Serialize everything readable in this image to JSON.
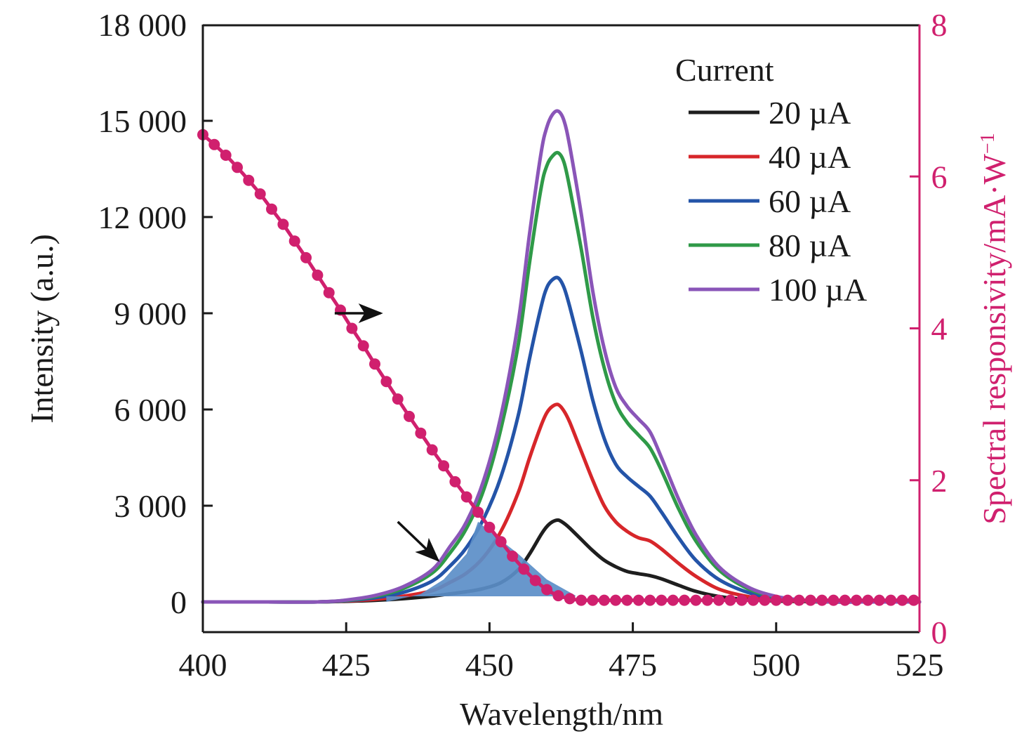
{
  "chart_data": {
    "type": "line",
    "title": "",
    "xlabel": "Wavelength/nm",
    "ylabel": "Intensity (a.u.)",
    "ylabel_right": "Spectral responsivity/mA·W",
    "ylabel_right_superscript": "−1",
    "xlim": [
      400,
      525
    ],
    "ylim": [
      0,
      18000
    ],
    "ylim_right": [
      0,
      8
    ],
    "grid": false,
    "xticks": [
      400,
      425,
      450,
      475,
      500,
      525
    ],
    "xtick_labels": [
      "400",
      "425",
      "450",
      "475",
      "500",
      "525"
    ],
    "yticks": [
      0,
      3000,
      6000,
      9000,
      12000,
      15000,
      18000
    ],
    "ytick_labels": [
      "0",
      "3 000",
      "6 000",
      "9 000",
      "12 000",
      "15 000",
      "18 000"
    ],
    "yticks_right": [
      0,
      2,
      4,
      6,
      8
    ],
    "ytick_labels_right": [
      "0",
      "2",
      "4",
      "6",
      "8"
    ],
    "legend": {
      "title": "Current",
      "placement": "top-right",
      "entries": [
        "20 µA",
        "40 µA",
        "60 µA",
        "80 µA",
        "100 µA"
      ]
    },
    "x": [
      400,
      410,
      420,
      425,
      430,
      435,
      440,
      443,
      446,
      449,
      452,
      455,
      457,
      459,
      460,
      461,
      462,
      463,
      464,
      466,
      468,
      470,
      472,
      474,
      476,
      478,
      480,
      483,
      486,
      490,
      495,
      500,
      505,
      510,
      515,
      520,
      525
    ],
    "series": [
      {
        "name": "20 µA",
        "axis": "left",
        "color": "#1e1e1e",
        "values": [
          0,
          0,
          0,
          20,
          50,
          100,
          180,
          250,
          320,
          420,
          600,
          1000,
          1500,
          2100,
          2350,
          2500,
          2550,
          2450,
          2300,
          1950,
          1600,
          1300,
          1100,
          950,
          880,
          820,
          720,
          520,
          330,
          170,
          70,
          30,
          10,
          0,
          0,
          0,
          0
        ]
      },
      {
        "name": "40 µA",
        "axis": "left",
        "color": "#d7262a",
        "values": [
          0,
          0,
          0,
          30,
          80,
          180,
          350,
          600,
          900,
          1400,
          2200,
          3400,
          4500,
          5500,
          5900,
          6100,
          6150,
          5950,
          5600,
          4700,
          3800,
          3000,
          2500,
          2200,
          2000,
          1900,
          1650,
          1200,
          800,
          400,
          170,
          70,
          20,
          0,
          0,
          0,
          0
        ]
      },
      {
        "name": "60 µA",
        "axis": "left",
        "color": "#2454a8",
        "values": [
          0,
          0,
          0,
          40,
          130,
          300,
          650,
          1100,
          1700,
          2600,
          3900,
          5800,
          7600,
          9200,
          9800,
          10050,
          10100,
          9800,
          9200,
          7800,
          6300,
          5100,
          4300,
          3900,
          3600,
          3300,
          2800,
          2000,
          1300,
          700,
          300,
          110,
          30,
          0,
          0,
          0,
          0
        ]
      },
      {
        "name": "80 µA",
        "axis": "left",
        "color": "#2f9a48",
        "values": [
          0,
          0,
          0,
          50,
          170,
          420,
          900,
          1500,
          2300,
          3500,
          5400,
          8000,
          10600,
          12900,
          13600,
          13900,
          14000,
          13700,
          12900,
          11000,
          8900,
          7300,
          6200,
          5600,
          5200,
          4800,
          4100,
          2900,
          1900,
          1000,
          420,
          150,
          40,
          0,
          0,
          0,
          0
        ]
      },
      {
        "name": "100 µA",
        "axis": "left",
        "color": "#8a55b8",
        "values": [
          0,
          0,
          0,
          60,
          200,
          480,
          1000,
          1700,
          2500,
          3800,
          5800,
          8700,
          11500,
          14000,
          14800,
          15200,
          15300,
          15000,
          14200,
          12100,
          9700,
          7900,
          6700,
          6100,
          5700,
          5300,
          4500,
          3200,
          2100,
          1100,
          470,
          170,
          50,
          0,
          0,
          0,
          0
        ]
      },
      {
        "name": "Spectral responsivity",
        "axis": "right",
        "color": "#d0206e",
        "marker": "circle",
        "x": [
          400,
          402,
          404,
          406,
          408,
          410,
          412,
          414,
          416,
          418,
          420,
          422,
          424,
          426,
          428,
          430,
          432,
          434,
          436,
          438,
          440,
          442,
          444,
          446,
          448,
          450,
          452,
          454,
          456,
          458,
          460,
          462,
          464,
          466,
          468,
          470,
          475,
          480,
          485,
          490,
          495,
          500,
          505,
          510,
          515,
          520,
          525
        ],
        "values": [
          6.55,
          6.42,
          6.28,
          6.12,
          5.95,
          5.77,
          5.57,
          5.37,
          5.15,
          4.93,
          4.7,
          4.47,
          4.24,
          4.0,
          3.77,
          3.53,
          3.3,
          3.07,
          2.84,
          2.62,
          2.4,
          2.19,
          1.98,
          1.78,
          1.58,
          1.38,
          1.19,
          1.0,
          0.83,
          0.68,
          0.56,
          0.48,
          0.44,
          0.42,
          0.42,
          0.42,
          0.42,
          0.42,
          0.42,
          0.42,
          0.42,
          0.42,
          0.42,
          0.42,
          0.42,
          0.42,
          0.42
        ]
      }
    ],
    "shaded_overlap": {
      "label": "overlap region",
      "color": "#5b8ec8",
      "x": [
        432,
        438,
        442,
        446,
        448,
        450,
        455,
        460,
        465
      ],
      "values": [
        0,
        250,
        700,
        1500,
        2500,
        2200,
        1500,
        700,
        200
      ]
    },
    "annotations": [
      {
        "name": "arrow-to-right-axis",
        "direction": "right",
        "from": [
          423,
          9000
        ],
        "to": [
          431,
          9000
        ]
      },
      {
        "name": "arrow-to-overlap",
        "direction": "down-right",
        "from": [
          434,
          2500
        ],
        "to": [
          441,
          1300
        ]
      }
    ]
  }
}
